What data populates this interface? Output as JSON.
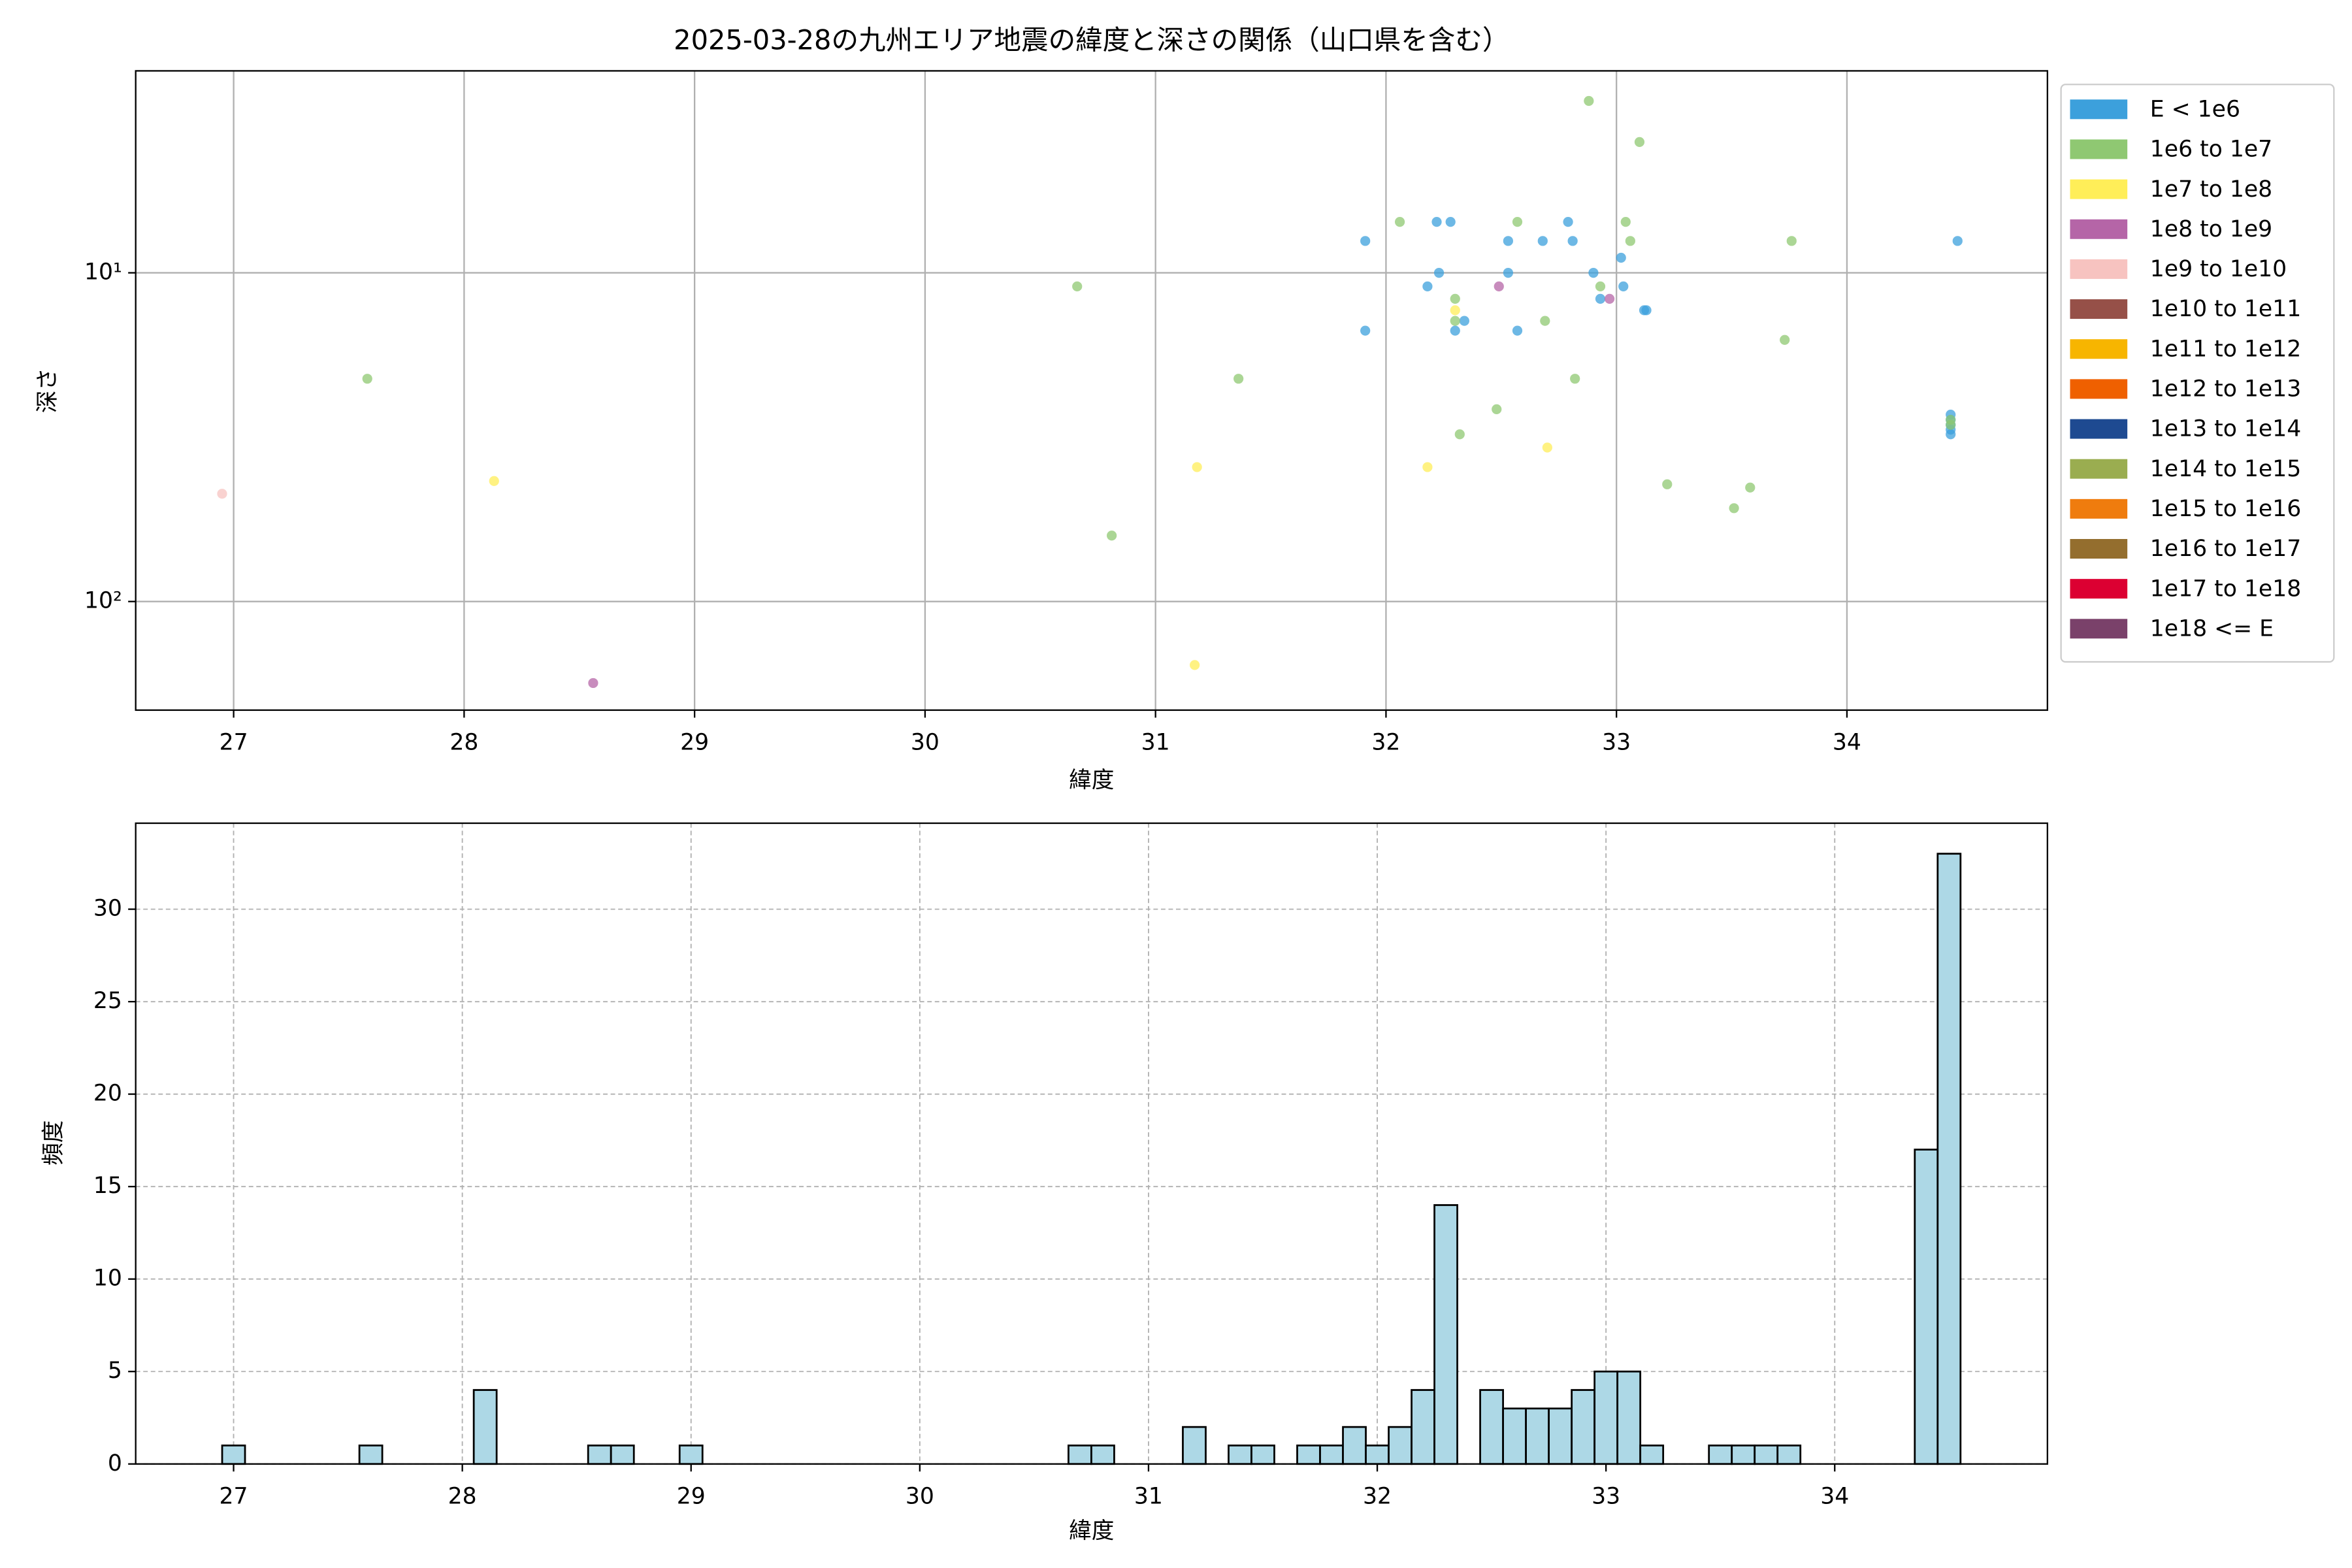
{
  "chart_data": [
    {
      "type": "scatter",
      "title": "2025-03-28の九州エリア地震の緯度と深さの関係（山口県を含む）",
      "x_label": "緯度",
      "y_label": "深さ",
      "xlim": [
        26.575,
        34.87
      ],
      "xticks": [
        27,
        28,
        29,
        30,
        31,
        32,
        33,
        34
      ],
      "ylim": [
        214,
        2.43
      ],
      "yscale": "log",
      "yticks": [
        {
          "value": 10,
          "label": "10¹"
        },
        {
          "value": 100,
          "label": "10²"
        }
      ],
      "grid": "solid",
      "legend": "outside right",
      "series": [
        {
          "name": "E < 1e6",
          "color": "#3ca0dc",
          "x": [
            31.91,
            31.91,
            32.18,
            32.22,
            32.23,
            32.28,
            32.3,
            32.34,
            32.53,
            32.53,
            32.57,
            32.68,
            32.79,
            32.81,
            32.9,
            32.93,
            33.02,
            33.03,
            33.12,
            33.13,
            34.48,
            34.45,
            34.45,
            34.45,
            34.45,
            34.45
          ],
          "y": [
            8,
            15,
            11,
            7,
            10,
            7,
            15,
            14,
            8,
            10,
            15,
            8,
            7,
            8,
            10,
            12,
            9,
            11,
            13,
            13,
            8,
            27,
            28,
            29,
            30,
            31
          ]
        },
        {
          "name": "1e6 to 1e7",
          "color": "#8fc872",
          "x": [
            27.58,
            30.66,
            30.81,
            31.36,
            32.06,
            32.3,
            32.3,
            32.32,
            32.48,
            32.57,
            32.69,
            32.82,
            32.88,
            32.93,
            33.04,
            33.06,
            33.1,
            33.22,
            33.51,
            33.58,
            33.73,
            33.76,
            34.45,
            34.45
          ],
          "y": [
            21,
            11,
            63,
            21,
            7,
            12,
            14,
            31,
            26,
            7,
            14,
            21,
            3,
            11,
            7,
            8,
            4,
            44,
            52,
            45,
            16,
            8,
            28,
            29
          ]
        },
        {
          "name": "1e7 to 1e8",
          "color": "#ffee58",
          "x": [
            28.13,
            31.17,
            31.18,
            32.18,
            32.3,
            32.7
          ],
          "y": [
            43,
            156,
            39,
            39,
            13,
            34
          ]
        },
        {
          "name": "1e8 to 1e9",
          "color": "#b565a7",
          "x": [
            28.56,
            32.49,
            32.97
          ],
          "y": [
            177,
            11,
            12
          ]
        },
        {
          "name": "1e9 to 1e10",
          "color": "#f7c3c0",
          "x": [
            26.95
          ],
          "y": [
            47
          ]
        },
        {
          "name": "1e10 to 1e11",
          "color": "#965048",
          "x": [],
          "y": []
        },
        {
          "name": "1e11 to 1e12",
          "color": "#f7b500",
          "x": [],
          "y": []
        },
        {
          "name": "1e12 to 1e13",
          "color": "#ef6000",
          "x": [],
          "y": []
        },
        {
          "name": "1e13 to 1e14",
          "color": "#1e4a91",
          "x": [],
          "y": []
        },
        {
          "name": "1e14 to 1e15",
          "color": "#9aad50",
          "x": [],
          "y": []
        },
        {
          "name": "1e15 to 1e16",
          "color": "#ef7c0e",
          "x": [],
          "y": []
        },
        {
          "name": "1e16 to 1e17",
          "color": "#946e2e",
          "x": [],
          "y": []
        },
        {
          "name": "1e17 to 1e18",
          "color": "#dc0032",
          "x": [],
          "y": []
        },
        {
          "name": "1e18 <= E",
          "color": "#7a416a",
          "x": [],
          "y": []
        }
      ]
    },
    {
      "type": "histogram",
      "x_label": "緯度",
      "y_label": "頻度",
      "xlim": [
        26.572,
        34.93
      ],
      "xticks": [
        27,
        28,
        29,
        30,
        31,
        32,
        33,
        34
      ],
      "ylim": [
        0,
        34.65
      ],
      "yticks": [
        0,
        5,
        10,
        15,
        20,
        25,
        30
      ],
      "grid": "dashed",
      "color": "#add8e6",
      "edgecolor": "#000000",
      "bins": [
        26.95,
        27.05,
        27.15,
        27.25,
        27.35,
        27.45,
        27.55,
        27.65,
        27.75,
        27.85,
        27.95,
        28.05,
        28.15,
        28.25,
        28.35,
        28.45,
        28.55,
        28.65,
        28.75,
        28.85,
        28.95,
        29.05,
        29.15,
        29.25,
        29.35,
        29.45,
        29.55,
        29.65,
        29.75,
        29.85,
        29.95,
        30.05,
        30.15,
        30.25,
        30.35,
        30.45,
        30.55,
        30.65,
        30.75,
        30.85,
        30.95,
        31.05,
        31.15,
        31.25,
        31.35,
        31.45,
        31.55,
        31.65,
        31.75,
        31.85,
        31.95,
        32.05,
        32.15,
        32.25,
        32.35,
        32.45,
        32.55,
        32.65,
        32.75,
        32.85,
        32.95,
        33.05,
        33.15,
        33.25,
        33.35,
        33.45,
        33.55,
        33.65,
        33.75,
        33.85,
        33.95,
        34.05,
        34.15,
        34.25,
        34.35,
        34.45,
        34.55
      ],
      "counts": [
        1,
        0,
        0,
        0,
        0,
        0,
        1,
        0,
        0,
        0,
        0,
        4,
        0,
        0,
        0,
        0,
        1,
        1,
        0,
        0,
        1,
        0,
        0,
        0,
        0,
        0,
        0,
        0,
        0,
        0,
        0,
        0,
        0,
        0,
        0,
        0,
        0,
        1,
        1,
        0,
        0,
        0,
        2,
        0,
        1,
        1,
        0,
        1,
        1,
        2,
        1,
        2,
        4,
        14,
        0,
        4,
        3,
        3,
        3,
        4,
        5,
        5,
        1,
        0,
        0,
        1,
        1,
        1,
        1,
        0,
        0,
        0,
        0,
        0,
        17,
        33
      ]
    }
  ]
}
